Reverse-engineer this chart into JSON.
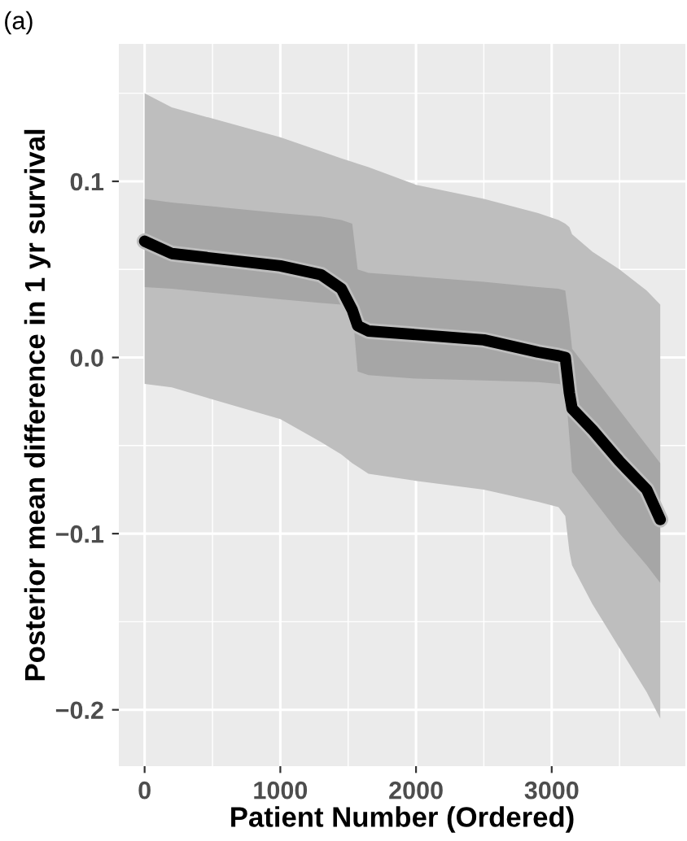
{
  "chart_data": {
    "type": "line",
    "title": "(a)",
    "xlabel": "Patient Number (Ordered)",
    "ylabel": "Posterior mean difference in 1 yr survival",
    "xlim": [
      -190,
      3985
    ],
    "ylim": [
      -0.232,
      0.178
    ],
    "xticks": [
      0,
      1000,
      2000,
      3000
    ],
    "yticks": [
      {
        "value": -0.2,
        "label": "−0.2"
      },
      {
        "value": -0.1,
        "label": "−0.1"
      },
      {
        "value": 0.0,
        "label": "0.0"
      },
      {
        "value": 0.1,
        "label": "0.1"
      }
    ],
    "grid": true,
    "legend": false,
    "marker": "none",
    "line_style": "solid",
    "series": [
      {
        "color": "#bebebe",
        "x": [
          0,
          200,
          1000,
          1300,
          1450,
          1530,
          1570,
          1650,
          2000,
          2500,
          2900,
          3050,
          3100,
          3130,
          3150,
          3300,
          3500,
          3700,
          3800
        ],
        "values": [
          0.066,
          0.059,
          0.052,
          0.047,
          0.039,
          0.027,
          0.018,
          0.015,
          0.013,
          0.01,
          0.003,
          0.001,
          0.0,
          -0.02,
          -0.029,
          -0.041,
          -0.059,
          -0.075,
          -0.092
        ],
        "upper": [
          0.15,
          0.142,
          0.125,
          0.117,
          0.113,
          0.111,
          0.11,
          0.108,
          0.098,
          0.09,
          0.082,
          0.078,
          0.076,
          0.074,
          0.07,
          0.06,
          0.05,
          0.038,
          0.03
        ],
        "lower": [
          -0.015,
          -0.017,
          -0.035,
          -0.048,
          -0.055,
          -0.06,
          -0.062,
          -0.066,
          -0.07,
          -0.075,
          -0.082,
          -0.085,
          -0.09,
          -0.11,
          -0.118,
          -0.14,
          -0.165,
          -0.19,
          -0.205
        ]
      },
      {
        "color": "#000000",
        "x": [
          0,
          200,
          1000,
          1300,
          1450,
          1530,
          1570,
          1650,
          2000,
          2500,
          2900,
          3050,
          3100,
          3130,
          3150,
          3300,
          3500,
          3700,
          3800
        ],
        "values": [
          0.066,
          0.059,
          0.052,
          0.047,
          0.039,
          0.027,
          0.018,
          0.015,
          0.013,
          0.01,
          0.003,
          0.001,
          0.0,
          -0.02,
          -0.029,
          -0.041,
          -0.059,
          -0.075,
          -0.092
        ],
        "upper": [
          0.09,
          0.088,
          0.082,
          0.08,
          0.078,
          0.076,
          0.05,
          0.048,
          0.046,
          0.043,
          0.04,
          0.039,
          0.038,
          0.02,
          0.005,
          -0.01,
          -0.03,
          -0.05,
          -0.06
        ],
        "lower": [
          0.04,
          0.039,
          0.033,
          0.031,
          0.03,
          0.028,
          -0.008,
          -0.01,
          -0.012,
          -0.013,
          -0.014,
          -0.015,
          -0.016,
          -0.045,
          -0.065,
          -0.08,
          -0.1,
          -0.118,
          -0.128
        ]
      }
    ]
  }
}
